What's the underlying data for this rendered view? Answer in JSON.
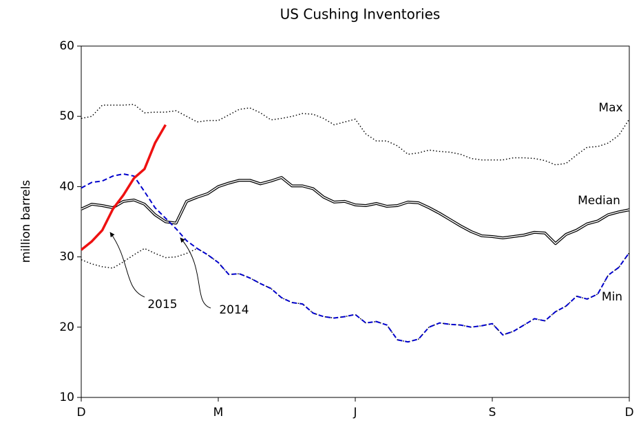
{
  "chart_data": {
    "type": "line",
    "title": "US Cushing Inventories",
    "ylabel": "million barrels",
    "x": [
      0,
      1,
      2,
      3,
      4,
      5,
      6,
      7,
      8,
      9,
      10,
      11,
      12,
      13,
      14,
      15,
      16,
      17,
      18,
      19,
      20,
      21,
      22,
      23,
      24,
      25,
      26,
      27,
      28,
      29,
      30,
      31,
      32,
      33,
      34,
      35,
      36,
      37,
      38,
      39,
      40,
      41,
      42,
      43,
      44,
      45,
      46,
      47,
      48,
      49,
      50,
      51,
      52
    ],
    "xlim": [
      0,
      52
    ],
    "xticks": [
      {
        "value": 0,
        "label": "D"
      },
      {
        "value": 13,
        "label": "M"
      },
      {
        "value": 26,
        "label": "J"
      },
      {
        "value": 39,
        "label": "S"
      },
      {
        "value": 52,
        "label": "D"
      }
    ],
    "ylim": [
      10,
      60
    ],
    "yticks": [
      10,
      20,
      30,
      40,
      50,
      60
    ],
    "grid": false,
    "series": [
      {
        "name": "Max",
        "color": "#000000",
        "style": "dotted",
        "values": [
          49.7,
          50,
          51.6,
          51.6,
          51.6,
          51.7,
          50.5,
          50.6,
          50.6,
          50.8,
          50,
          49.2,
          49.4,
          49.4,
          50.2,
          51,
          51.2,
          50.5,
          49.5,
          49.7,
          50,
          50.4,
          50.3,
          49.7,
          48.8,
          49.2,
          49.6,
          47.5,
          46.5,
          46.5,
          45.8,
          44.6,
          44.8,
          45.2,
          45,
          44.9,
          44.6,
          44,
          43.8,
          43.8,
          43.8,
          44.1,
          44.1,
          44,
          43.7,
          43.1,
          43.3,
          44.5,
          45.6,
          45.7,
          46.2,
          47.3,
          49.6
        ]
      },
      {
        "name": "Median",
        "color": "#000000",
        "style": "double",
        "values": [
          36.8,
          37.5,
          37.3,
          37,
          37.9,
          38.1,
          37.5,
          36,
          35,
          34.8,
          37.9,
          38.5,
          39,
          40,
          40.5,
          40.9,
          40.9,
          40.4,
          40.8,
          41.3,
          40.1,
          40.1,
          39.7,
          38.5,
          37.8,
          37.9,
          37.4,
          37.3,
          37.6,
          37.2,
          37.3,
          37.8,
          37.7,
          37,
          36.2,
          35.3,
          34.4,
          33.6,
          33,
          32.9,
          32.7,
          32.9,
          33.1,
          33.5,
          33.4,
          31.9,
          33.2,
          33.8,
          34.7,
          35.1,
          36,
          36.4,
          36.7
        ]
      },
      {
        "name": "Min",
        "color": "#000000",
        "style": "dotted",
        "values": [
          29.6,
          29,
          28.6,
          28.4,
          29.3,
          30.3,
          31.2,
          30.5,
          29.9,
          30,
          30.5,
          31.2,
          30.3,
          29.2,
          27.5,
          27.6,
          27,
          26.2,
          25.5,
          24.2,
          23.5,
          23.3,
          22,
          21.5,
          21.3,
          21.5,
          21.8,
          20.6,
          20.8,
          20.3,
          18.2,
          17.9,
          18.3,
          20,
          20.6,
          20.4,
          20.3,
          20,
          20.2,
          20.5,
          18.9,
          19.4,
          20.3,
          21.2,
          20.9,
          22.2,
          23,
          24.4,
          24,
          24.7,
          27.4,
          28.5,
          30.6
        ]
      },
      {
        "name": "2014",
        "color": "#0000cc",
        "style": "dashed",
        "values": [
          39.8,
          40.6,
          40.8,
          41.5,
          41.8,
          41.5,
          39.3,
          37,
          35.5,
          34,
          32.3,
          31.2,
          30.3,
          29.2,
          27.5,
          27.6,
          27,
          26.2,
          25.5,
          24.2,
          23.5,
          23.3,
          22,
          21.5,
          21.3,
          21.5,
          21.8,
          20.6,
          20.8,
          20.3,
          18.2,
          17.9,
          18.3,
          20,
          20.6,
          20.4,
          20.3,
          20,
          20.2,
          20.5,
          18.9,
          19.4,
          20.3,
          21.2,
          20.9,
          22.2,
          23,
          24.4,
          24,
          24.7,
          27.4,
          28.5,
          30.6
        ]
      },
      {
        "name": "2015",
        "color": "#ee1111",
        "style": "solid",
        "values": [
          31,
          32.2,
          33.8,
          36.8,
          38.8,
          41.2,
          42.5,
          46.2,
          48.8,
          null,
          null,
          null,
          null,
          null,
          null,
          null,
          null,
          null,
          null,
          null,
          null,
          null,
          null,
          null,
          null,
          null,
          null,
          null,
          null,
          null,
          null,
          null,
          null,
          null,
          null,
          null,
          null,
          null,
          null,
          null,
          null,
          null,
          null,
          null,
          null,
          null,
          null,
          null,
          null,
          null,
          null,
          null,
          null
        ]
      }
    ]
  }
}
